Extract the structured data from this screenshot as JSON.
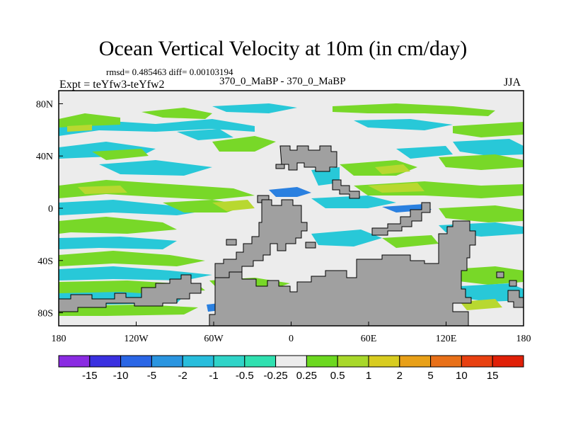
{
  "title": "Ocean Vertical Velocity at 10m (in cm/day)",
  "stats_line": "rmsd= 0.485463 diff= 0.00103194",
  "experiment_label": "Expt = teYfw3-teYfw2",
  "period_label": "370_0_MaBP - 370_0_MaBP",
  "season_label": "JJA",
  "axes": {
    "x_ticks": [
      "180",
      "120W",
      "60W",
      "0",
      "60E",
      "120E",
      "180"
    ],
    "x_values": [
      -180,
      -120,
      -60,
      0,
      60,
      120,
      180
    ],
    "y_ticks": [
      "80N",
      "40N",
      "0",
      "40S",
      "80S"
    ],
    "y_values": [
      80,
      40,
      0,
      -40,
      -80
    ],
    "lon_range": [
      -180,
      180
    ],
    "lat_range": [
      -90,
      90
    ]
  },
  "colorbar": {
    "labels": [
      "-15",
      "-10",
      "-5",
      "-2",
      "-1",
      "-0.5",
      "-0.25",
      "0.25",
      "0.5",
      "1",
      "2",
      "5",
      "10",
      "15"
    ],
    "colors": [
      "#8a2be2",
      "#3a30e0",
      "#2a66e6",
      "#2a95e0",
      "#28bddc",
      "#30d4c8",
      "#30e0b0",
      "#ececec",
      "#6cd820",
      "#a8d82a",
      "#d8cc20",
      "#e8a018",
      "#e87018",
      "#e84010",
      "#e02008"
    ]
  },
  "colors": {
    "land": "#a0a0a0",
    "background": "#ececec",
    "cyan": "#28c8d8",
    "teal": "#30d8b8",
    "green": "#78d828",
    "yellow_green": "#b8d830",
    "yellow": "#d8c820",
    "orange": "#e8a018",
    "blue": "#2a80e0"
  },
  "chart_data": {
    "type": "heatmap",
    "title": "Ocean Vertical Velocity at 10m (in cm/day)",
    "variable": "Ocean vertical velocity difference at 10m",
    "units": "cm/day",
    "season": "JJA",
    "x_axis": "longitude",
    "y_axis": "latitude",
    "xlim": [
      -180,
      180
    ],
    "ylim": [
      -90,
      90
    ],
    "contour_levels": [
      -15,
      -10,
      -5,
      -2,
      -1,
      -0.5,
      -0.25,
      0.25,
      0.5,
      1,
      2,
      5,
      10,
      15
    ],
    "rmsd": 0.485463,
    "diff": 0.00103194
  }
}
